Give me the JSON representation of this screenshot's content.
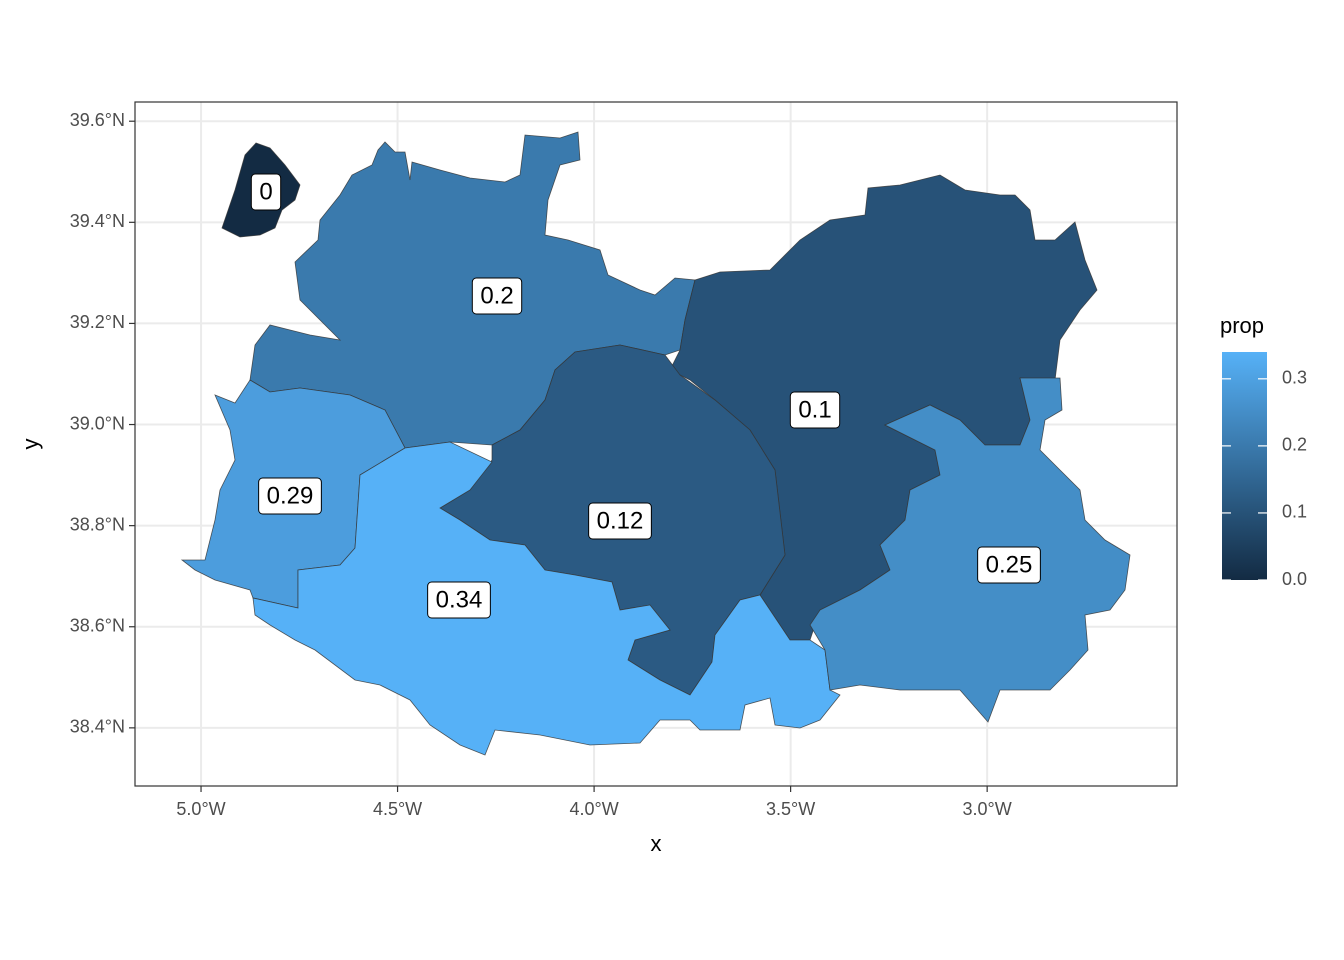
{
  "chart_data": {
    "type": "choropleth",
    "x_label": "x",
    "y_label": "y",
    "values": [
      0,
      0.2,
      0.1,
      0.29,
      0.12,
      0.34,
      0.25
    ],
    "xlim": [
      -5.168,
      -2.517
    ],
    "xticks": [
      {
        "value": -5,
        "label": "5.0°W"
      },
      {
        "value": -4.5,
        "label": "4.5°W"
      },
      {
        "value": -4,
        "label": "4.0°W"
      },
      {
        "value": -3.5,
        "label": "3.5°W"
      },
      {
        "value": -3,
        "label": "3.0°W"
      }
    ],
    "ylim": [
      38.285,
      39.638
    ],
    "yticks": [
      {
        "value": 38.4,
        "label": "38.4°N"
      },
      {
        "value": 38.6,
        "label": "38.6°N"
      },
      {
        "value": 38.8,
        "label": "38.8°N"
      },
      {
        "value": 39,
        "label": "39.0°N"
      },
      {
        "value": 39.2,
        "label": "39.2°N"
      },
      {
        "value": 39.4,
        "label": "39.4°N"
      },
      {
        "value": 39.6,
        "label": "39.6°N"
      }
    ],
    "grid": true,
    "legend": {
      "title": "prop",
      "colors": [
        "#132B43",
        "#56B1F7"
      ],
      "limits": [
        0,
        0.34
      ],
      "ticks": [
        {
          "value": 0,
          "label": "0.0"
        },
        0.1,
        0.2,
        0.3
      ]
    }
  }
}
